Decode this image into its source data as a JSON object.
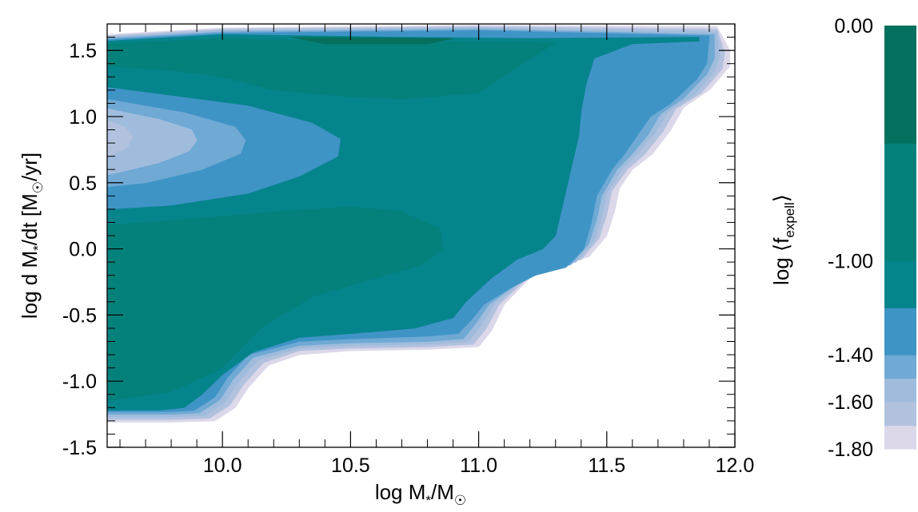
{
  "chart_data": {
    "type": "contour",
    "title": "",
    "xlabel": "log M*/M☉",
    "ylabel": "log d M*/dt [M☉/yr]",
    "xlim": [
      9.55,
      12.0
    ],
    "ylim": [
      -1.5,
      1.7
    ],
    "x_ticks": [
      {
        "value": 10.0,
        "label": "10.0"
      },
      {
        "value": 10.5,
        "label": "10.5"
      },
      {
        "value": 11.0,
        "label": "11.0"
      },
      {
        "value": 11.5,
        "label": "11.5"
      },
      {
        "value": 12.0,
        "label": "12.0"
      }
    ],
    "y_ticks": [
      {
        "value": 1.5,
        "label": "1.5"
      },
      {
        "value": 1.0,
        "label": "1.0"
      },
      {
        "value": 0.5,
        "label": "0.5"
      },
      {
        "value": 0.0,
        "label": "0.0"
      },
      {
        "value": -0.5,
        "label": "-0.5"
      },
      {
        "value": -1.0,
        "label": "-1.0"
      },
      {
        "value": -1.5,
        "label": "-1.5"
      }
    ],
    "colorbar": {
      "label": "log ⟨fexpell⟩",
      "range": [
        -1.8,
        0.0
      ],
      "ticks": [
        {
          "value": 0.0,
          "label": "0.00"
        },
        {
          "value": -1.0,
          "label": "-1.00"
        },
        {
          "value": -1.4,
          "label": "-1.40"
        },
        {
          "value": -1.6,
          "label": "-1.60"
        },
        {
          "value": -1.8,
          "label": "-1.80"
        }
      ],
      "levels": [
        {
          "from": -1.8,
          "to": -1.7,
          "color": "#dcd8ea"
        },
        {
          "from": -1.7,
          "to": -1.6,
          "color": "#b2c2de"
        },
        {
          "from": -1.6,
          "to": -1.5,
          "color": "#a0bcdc"
        },
        {
          "from": -1.5,
          "to": -1.4,
          "color": "#6fa9d4"
        },
        {
          "from": -1.4,
          "to": -1.2,
          "color": "#3f94c6"
        },
        {
          "from": -1.2,
          "to": -1.0,
          "color": "#06848c"
        },
        {
          "from": -1.0,
          "to": -0.5,
          "color": "#05817c"
        },
        {
          "from": -0.5,
          "to": 0.0,
          "color": "#05705d"
        }
      ]
    },
    "regions": [
      {
        "level": -1.8,
        "color": "#dcd8ea",
        "points": [
          [
            9.55,
            1.62
          ],
          [
            10.0,
            1.67
          ],
          [
            11.0,
            1.69
          ],
          [
            11.93,
            1.68
          ],
          [
            11.98,
            1.5
          ],
          [
            11.98,
            1.38
          ],
          [
            11.9,
            1.2
          ],
          [
            11.8,
            1.07
          ],
          [
            11.75,
            0.9
          ],
          [
            11.68,
            0.72
          ],
          [
            11.6,
            0.6
          ],
          [
            11.55,
            0.46
          ],
          [
            11.53,
            0.28
          ],
          [
            11.5,
            0.1
          ],
          [
            11.43,
            -0.06
          ],
          [
            11.3,
            -0.13
          ],
          [
            11.2,
            -0.22
          ],
          [
            11.1,
            -0.42
          ],
          [
            11.05,
            -0.62
          ],
          [
            11.0,
            -0.74
          ],
          [
            10.8,
            -0.76
          ],
          [
            10.5,
            -0.77
          ],
          [
            10.3,
            -0.8
          ],
          [
            10.18,
            -0.88
          ],
          [
            10.1,
            -1.05
          ],
          [
            10.05,
            -1.2
          ],
          [
            9.97,
            -1.3
          ],
          [
            9.8,
            -1.31
          ],
          [
            9.55,
            -1.31
          ]
        ]
      },
      {
        "level": -1.7,
        "color": "#b2c2de",
        "points": [
          [
            9.55,
            1.61
          ],
          [
            10.0,
            1.66
          ],
          [
            11.0,
            1.68
          ],
          [
            11.93,
            1.66
          ],
          [
            11.96,
            1.48
          ],
          [
            11.95,
            1.36
          ],
          [
            11.87,
            1.18
          ],
          [
            11.77,
            1.06
          ],
          [
            11.72,
            0.89
          ],
          [
            11.65,
            0.72
          ],
          [
            11.58,
            0.6
          ],
          [
            11.52,
            0.44
          ],
          [
            11.5,
            0.26
          ],
          [
            11.47,
            0.08
          ],
          [
            11.4,
            -0.08
          ],
          [
            11.28,
            -0.14
          ],
          [
            11.18,
            -0.24
          ],
          [
            11.08,
            -0.42
          ],
          [
            11.03,
            -0.6
          ],
          [
            10.98,
            -0.72
          ],
          [
            10.8,
            -0.74
          ],
          [
            10.5,
            -0.75
          ],
          [
            10.3,
            -0.77
          ],
          [
            10.16,
            -0.86
          ],
          [
            10.08,
            -1.03
          ],
          [
            10.03,
            -1.18
          ],
          [
            9.95,
            -1.28
          ],
          [
            9.8,
            -1.29
          ],
          [
            9.55,
            -1.29
          ]
        ]
      },
      {
        "level": -1.6,
        "color": "#a0bcdc",
        "points": [
          [
            9.55,
            1.6
          ],
          [
            10.0,
            1.65
          ],
          [
            11.0,
            1.67
          ],
          [
            11.93,
            1.64
          ],
          [
            11.94,
            1.46
          ],
          [
            11.92,
            1.34
          ],
          [
            11.84,
            1.16
          ],
          [
            11.74,
            1.04
          ],
          [
            11.69,
            0.88
          ],
          [
            11.62,
            0.72
          ],
          [
            11.56,
            0.6
          ],
          [
            11.5,
            0.42
          ],
          [
            11.48,
            0.24
          ],
          [
            11.45,
            0.06
          ],
          [
            11.38,
            -0.1
          ],
          [
            11.26,
            -0.16
          ],
          [
            11.16,
            -0.26
          ],
          [
            11.06,
            -0.42
          ],
          [
            11.01,
            -0.58
          ],
          [
            10.96,
            -0.7
          ],
          [
            10.8,
            -0.72
          ],
          [
            10.5,
            -0.73
          ],
          [
            10.3,
            -0.75
          ],
          [
            10.14,
            -0.84
          ],
          [
            10.06,
            -1.01
          ],
          [
            10.01,
            -1.16
          ],
          [
            9.93,
            -1.26
          ],
          [
            9.8,
            -1.27
          ],
          [
            9.55,
            -1.27
          ]
        ]
      },
      {
        "level": -1.5,
        "color": "#6fa9d4",
        "points": [
          [
            9.55,
            1.59
          ],
          [
            10.0,
            1.64
          ],
          [
            11.0,
            1.66
          ],
          [
            11.92,
            1.62
          ],
          [
            11.92,
            1.44
          ],
          [
            11.89,
            1.32
          ],
          [
            11.8,
            1.14
          ],
          [
            11.71,
            1.02
          ],
          [
            11.66,
            0.86
          ],
          [
            11.6,
            0.72
          ],
          [
            11.54,
            0.6
          ],
          [
            11.48,
            0.4
          ],
          [
            11.46,
            0.22
          ],
          [
            11.43,
            0.04
          ],
          [
            11.36,
            -0.12
          ],
          [
            11.24,
            -0.18
          ],
          [
            11.14,
            -0.28
          ],
          [
            11.04,
            -0.42
          ],
          [
            10.99,
            -0.56
          ],
          [
            10.94,
            -0.68
          ],
          [
            10.8,
            -0.7
          ],
          [
            10.5,
            -0.71
          ],
          [
            10.3,
            -0.73
          ],
          [
            10.12,
            -0.82
          ],
          [
            10.04,
            -0.99
          ],
          [
            9.99,
            -1.14
          ],
          [
            9.91,
            -1.24
          ],
          [
            9.8,
            -1.25
          ],
          [
            9.55,
            -1.25
          ]
        ]
      },
      {
        "level": -1.4,
        "color": "#3f94c6",
        "points": [
          [
            9.55,
            1.58
          ],
          [
            10.0,
            1.63
          ],
          [
            11.0,
            1.65
          ],
          [
            11.9,
            1.61
          ],
          [
            11.89,
            1.4
          ],
          [
            11.85,
            1.28
          ],
          [
            11.75,
            1.1
          ],
          [
            11.67,
            1.0
          ],
          [
            11.62,
            0.86
          ],
          [
            11.57,
            0.72
          ],
          [
            11.52,
            0.6
          ],
          [
            11.46,
            0.4
          ],
          [
            11.44,
            0.2
          ],
          [
            11.41,
            0.0
          ],
          [
            11.34,
            -0.14
          ],
          [
            11.22,
            -0.2
          ],
          [
            11.12,
            -0.3
          ],
          [
            11.02,
            -0.42
          ],
          [
            10.97,
            -0.54
          ],
          [
            10.92,
            -0.64
          ],
          [
            10.8,
            -0.66
          ],
          [
            10.5,
            -0.68
          ],
          [
            10.3,
            -0.7
          ],
          [
            10.1,
            -0.8
          ],
          [
            10.02,
            -0.97
          ],
          [
            9.97,
            -1.12
          ],
          [
            9.89,
            -1.22
          ],
          [
            9.8,
            -1.23
          ],
          [
            9.55,
            -1.23
          ]
        ]
      },
      {
        "level": -1.2,
        "color": "#06848c",
        "points": [
          [
            9.55,
            1.57
          ],
          [
            10.0,
            1.62
          ],
          [
            10.7,
            1.6
          ],
          [
            11.2,
            1.59
          ],
          [
            11.86,
            1.6
          ],
          [
            11.86,
            1.57
          ],
          [
            11.6,
            1.55
          ],
          [
            11.45,
            1.44
          ],
          [
            11.42,
            1.25
          ],
          [
            11.4,
            1.05
          ],
          [
            11.39,
            0.85
          ],
          [
            11.36,
            0.6
          ],
          [
            11.33,
            0.35
          ],
          [
            11.3,
            0.1
          ],
          [
            11.25,
            0.0
          ],
          [
            11.15,
            -0.08
          ],
          [
            11.05,
            -0.22
          ],
          [
            10.95,
            -0.4
          ],
          [
            10.9,
            -0.52
          ],
          [
            10.75,
            -0.6
          ],
          [
            10.5,
            -0.64
          ],
          [
            10.3,
            -0.67
          ],
          [
            10.12,
            -0.78
          ],
          [
            10.0,
            -0.95
          ],
          [
            9.92,
            -1.1
          ],
          [
            9.85,
            -1.2
          ],
          [
            9.75,
            -1.22
          ],
          [
            9.55,
            -1.22
          ]
        ]
      },
      {
        "level": -1.0,
        "color": "#05817c",
        "points": [
          [
            9.55,
            1.55
          ],
          [
            10.0,
            1.59
          ],
          [
            10.6,
            1.57
          ],
          [
            11.3,
            1.56
          ],
          [
            11.0,
            1.18
          ],
          [
            10.7,
            1.13
          ],
          [
            10.5,
            1.15
          ],
          [
            10.2,
            1.2
          ],
          [
            10.0,
            1.3
          ],
          [
            9.8,
            1.35
          ],
          [
            9.55,
            1.38
          ]
        ]
      },
      {
        "level": -0.5,
        "color": "#05705d",
        "points": [
          [
            10.27,
            1.6
          ],
          [
            10.9,
            1.59
          ],
          [
            10.8,
            1.55
          ],
          [
            10.4,
            1.55
          ]
        ]
      },
      {
        "level": -0.5,
        "color": "#05817c",
        "points": [
          [
            9.55,
            0.18
          ],
          [
            9.9,
            0.23
          ],
          [
            10.2,
            0.28
          ],
          [
            10.5,
            0.32
          ],
          [
            10.7,
            0.28
          ],
          [
            10.85,
            0.15
          ],
          [
            10.86,
            0.0
          ],
          [
            10.78,
            -0.12
          ],
          [
            10.6,
            -0.22
          ],
          [
            10.35,
            -0.36
          ],
          [
            10.15,
            -0.6
          ],
          [
            10.0,
            -0.9
          ],
          [
            9.8,
            -1.08
          ],
          [
            9.55,
            -1.15
          ]
        ]
      },
      {
        "level": -1.4,
        "color": "#3f94c6",
        "points": [
          [
            9.55,
            1.22
          ],
          [
            10.1,
            1.08
          ],
          [
            10.35,
            0.95
          ],
          [
            10.46,
            0.83
          ],
          [
            10.45,
            0.7
          ],
          [
            10.3,
            0.55
          ],
          [
            10.1,
            0.42
          ],
          [
            9.8,
            0.33
          ],
          [
            9.55,
            0.3
          ]
        ]
      },
      {
        "level": -1.5,
        "color": "#6fa9d4",
        "points": [
          [
            9.55,
            1.13
          ],
          [
            9.85,
            1.03
          ],
          [
            10.05,
            0.92
          ],
          [
            10.09,
            0.82
          ],
          [
            10.07,
            0.72
          ],
          [
            9.92,
            0.6
          ],
          [
            9.7,
            0.5
          ],
          [
            9.55,
            0.47
          ]
        ]
      },
      {
        "level": -1.6,
        "color": "#a0bcdc",
        "points": [
          [
            9.55,
            1.06
          ],
          [
            9.75,
            0.98
          ],
          [
            9.88,
            0.9
          ],
          [
            9.9,
            0.82
          ],
          [
            9.87,
            0.74
          ],
          [
            9.75,
            0.65
          ],
          [
            9.6,
            0.58
          ],
          [
            9.55,
            0.56
          ]
        ]
      },
      {
        "level": -1.7,
        "color": "#b2c2de",
        "points": [
          [
            9.55,
            0.97
          ],
          [
            9.62,
            0.92
          ],
          [
            9.65,
            0.85
          ],
          [
            9.63,
            0.77
          ],
          [
            9.58,
            0.72
          ],
          [
            9.55,
            0.7
          ]
        ]
      }
    ]
  }
}
